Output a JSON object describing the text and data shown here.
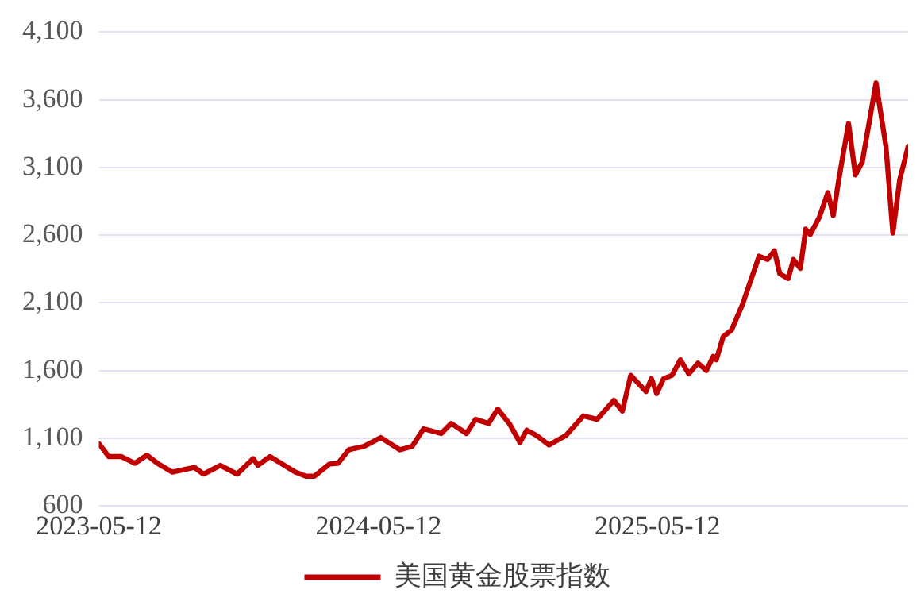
{
  "chart_data": {
    "type": "line",
    "x": [
      "2023-05-12",
      "2023-05-25",
      "2023-06-10",
      "2023-06-28",
      "2023-07-14",
      "2023-07-29",
      "2023-08-16",
      "2023-09-14",
      "2023-09-26",
      "2023-10-18",
      "2023-11-09",
      "2023-11-30",
      "2023-12-06",
      "2023-12-22",
      "2024-01-24",
      "2024-02-07",
      "2024-02-18",
      "2024-03-09",
      "2024-03-20",
      "2024-04-03",
      "2024-04-23",
      "2024-05-15",
      "2024-06-09",
      "2024-06-25",
      "2024-07-10",
      "2024-08-02",
      "2024-08-15",
      "2024-09-04",
      "2024-09-16",
      "2024-10-03",
      "2024-10-15",
      "2024-10-30",
      "2024-11-13",
      "2024-11-22",
      "2024-12-05",
      "2024-12-21",
      "2025-01-12",
      "2025-02-04",
      "2025-02-22",
      "2025-03-16",
      "2025-03-27",
      "2025-04-07",
      "2025-04-27",
      "2025-05-04",
      "2025-05-11",
      "2025-05-20",
      "2025-05-31",
      "2025-06-11",
      "2025-06-22",
      "2025-07-04",
      "2025-07-15",
      "2025-07-24",
      "2025-07-28",
      "2025-08-06",
      "2025-08-17",
      "2025-08-31",
      "2025-09-22",
      "2025-10-03",
      "2025-10-12",
      "2025-10-19",
      "2025-10-30",
      "2025-11-06",
      "2025-11-15",
      "2025-11-22",
      "2025-11-28",
      "2025-12-10",
      "2025-12-21",
      "2025-12-28",
      "2026-01-05",
      "2026-01-17",
      "2026-01-26",
      "2026-02-04",
      "2026-02-22",
      "2026-03-07",
      "2026-03-16",
      "2026-03-25",
      "2026-04-05"
    ],
    "series": [
      {
        "name": "美国黄金股票指数",
        "color": "#c00000",
        "values": [
          1060,
          965,
          965,
          915,
          975,
          910,
          850,
          885,
          835,
          900,
          835,
          950,
          900,
          965,
          850,
          820,
          820,
          910,
          915,
          1015,
          1040,
          1105,
          1015,
          1040,
          1170,
          1135,
          1210,
          1135,
          1240,
          1210,
          1315,
          1210,
          1070,
          1160,
          1120,
          1050,
          1120,
          1265,
          1240,
          1380,
          1300,
          1565,
          1445,
          1540,
          1430,
          1540,
          1565,
          1680,
          1575,
          1655,
          1600,
          1705,
          1680,
          1850,
          1900,
          2085,
          2445,
          2420,
          2485,
          2315,
          2280,
          2420,
          2355,
          2645,
          2605,
          2735,
          2915,
          2745,
          3035,
          3425,
          3045,
          3140,
          3725,
          3255,
          2615,
          3010,
          3255
        ]
      }
    ],
    "xlim": [
      "2023-05-12",
      "2026-04-05"
    ],
    "xticks": [
      "2023-05-12",
      "2024-05-12",
      "2025-05-12"
    ],
    "ylim": [
      600,
      4100
    ],
    "yticks": [
      {
        "value": 600,
        "label": "600"
      },
      {
        "value": 1100,
        "label": "1,100"
      },
      {
        "value": 1600,
        "label": "1,600"
      },
      {
        "value": 2100,
        "label": "2,100"
      },
      {
        "value": 2600,
        "label": "2,600"
      },
      {
        "value": 3100,
        "label": "3,100"
      },
      {
        "value": 3600,
        "label": "3,600"
      },
      {
        "value": 4100,
        "label": "4,100"
      }
    ],
    "grid": "y",
    "legend": "bottom",
    "marker": "none",
    "line_style": "solid"
  }
}
